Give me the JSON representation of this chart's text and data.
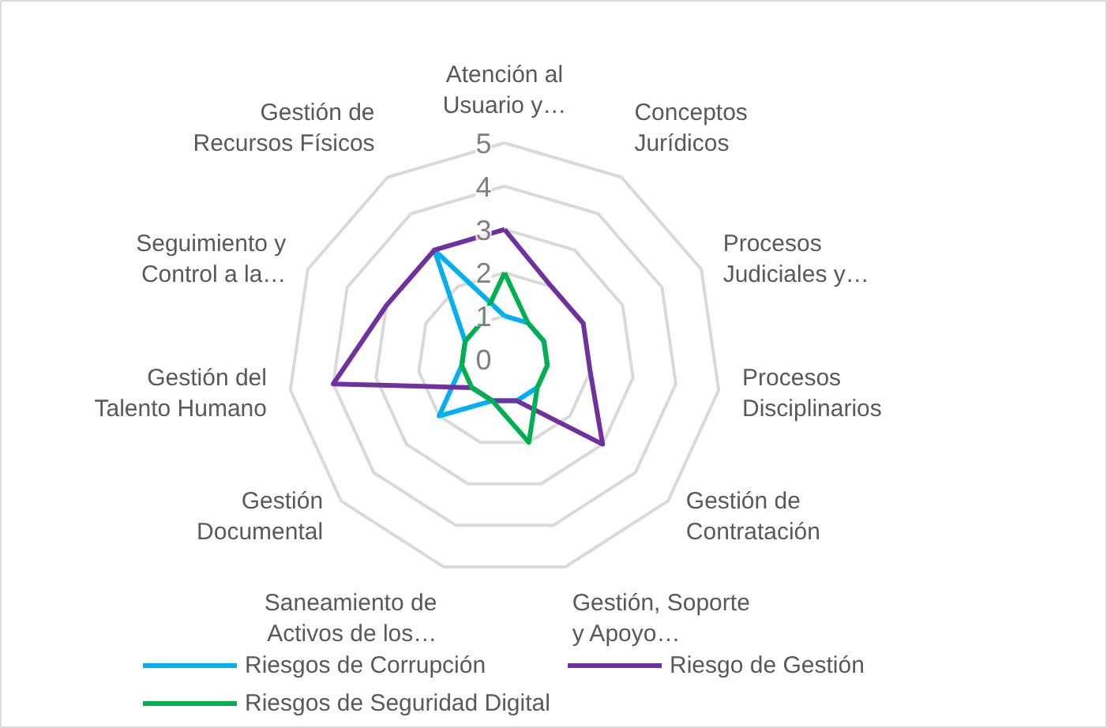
{
  "chart_data": {
    "type": "radar",
    "categories": [
      "Atención al\nUsuario y…",
      "Conceptos\nJurídicos",
      "Procesos\nJudiciales y…",
      "Procesos\nDisciplinarios",
      "Gestión de\nContratación",
      "Gestión, Soporte\ny Apoyo…",
      "Saneamiento de\nActivos de los…",
      "Gestión\nDocumental",
      "Gestión del\nTalento Humano",
      "Seguimiento y\nControl a la…",
      "Gestión de\nRecursos Físicos"
    ],
    "series": [
      {
        "name": "Riesgos de Corrupción",
        "color": "#00b0f0",
        "values": [
          1,
          1,
          1,
          1,
          1,
          1,
          1,
          2,
          1,
          1,
          3
        ]
      },
      {
        "name": "Riesgo de Gestión",
        "color": "#7030a0",
        "values": [
          3,
          2,
          2,
          2,
          3,
          1,
          1,
          1,
          4,
          3,
          3
        ]
      },
      {
        "name": "Riesgos de Seguridad Digital",
        "color": "#00b050",
        "values": [
          2,
          1,
          1,
          1,
          1,
          2,
          1,
          1,
          1,
          1,
          1
        ]
      }
    ],
    "ylim": [
      0,
      5
    ],
    "yticks": [
      0,
      1,
      2,
      3,
      4,
      5
    ],
    "grid": true,
    "legend": "bottom",
    "line_style": "solid"
  }
}
